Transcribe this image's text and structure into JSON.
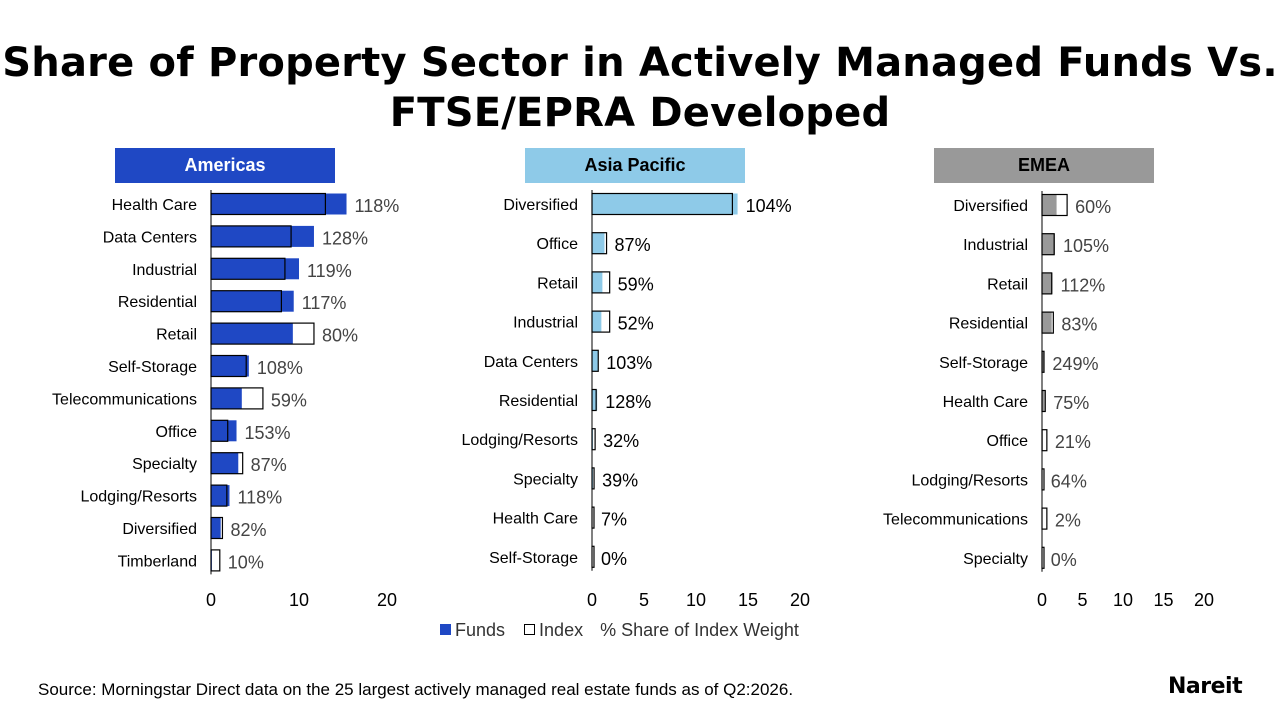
{
  "title": "Share of Property Sector in Actively Managed Funds Vs. FTSE/EPRA Developed",
  "legend": {
    "funds": "Funds",
    "index": "Index",
    "note": "% Share of Index Weight"
  },
  "source": "Source: Morningstar Direct data on the 25 largest actively managed real estate funds as of Q2:2026.",
  "logo": "Nareit",
  "chart_data": [
    {
      "type": "bar",
      "orientation": "horizontal",
      "title": "Americas",
      "header_color": "#1f48c4",
      "bar_color": "#1f48c4",
      "categories": [
        "Health Care",
        "Data Centers",
        "Industrial",
        "Residential",
        "Retail",
        "Self-Storage",
        "Telecommunications",
        "Office",
        "Specialty",
        "Lodging/Resorts",
        "Diversified",
        "Timberland"
      ],
      "series": [
        {
          "name": "Funds",
          "values": [
            15.4,
            11.7,
            10.0,
            9.4,
            9.3,
            4.3,
            3.5,
            2.9,
            3.1,
            2.1,
            1.1,
            0.1
          ]
        },
        {
          "name": "Index",
          "values": [
            13.0,
            9.1,
            8.4,
            8.0,
            11.7,
            4.0,
            5.9,
            1.9,
            3.6,
            1.8,
            1.3,
            1.0
          ]
        }
      ],
      "ratio_labels": [
        "118%",
        "128%",
        "119%",
        "117%",
        "80%",
        "108%",
        "59%",
        "153%",
        "87%",
        "118%",
        "82%",
        "10%"
      ],
      "xticks": [
        0,
        10,
        20
      ],
      "xlim": [
        0,
        20
      ]
    },
    {
      "type": "bar",
      "orientation": "horizontal",
      "title": "Asia Pacific",
      "header_color": "#8ecae8",
      "bar_color": "#8ecae8",
      "categories": [
        "Diversified",
        "Office",
        "Retail",
        "Industrial",
        "Data Centers",
        "Residential",
        "Lodging/Resorts",
        "Specialty",
        "Health Care",
        "Self-Storage"
      ],
      "series": [
        {
          "name": "Funds",
          "values": [
            14.0,
            1.2,
            1.0,
            0.9,
            0.6,
            0.5,
            0.1,
            0.1,
            0.0,
            0.0
          ]
        },
        {
          "name": "Index",
          "values": [
            13.5,
            1.4,
            1.7,
            1.7,
            0.6,
            0.4,
            0.3,
            0.2,
            0.1,
            0.1
          ]
        }
      ],
      "ratio_labels": [
        "104%",
        "87%",
        "59%",
        "52%",
        "103%",
        "128%",
        "32%",
        "39%",
        "7%",
        "0%"
      ],
      "xticks": [
        0,
        5,
        10,
        15,
        20
      ],
      "xlim": [
        0,
        20
      ]
    },
    {
      "type": "bar",
      "orientation": "horizontal",
      "title": "EMEA",
      "header_color": "#999999",
      "bar_color": "#999999",
      "categories": [
        "Diversified",
        "Industrial",
        "Retail",
        "Residential",
        "Self-Storage",
        "Health Care",
        "Office",
        "Lodging/Resorts",
        "Telecommunications",
        "Specialty"
      ],
      "series": [
        {
          "name": "Funds",
          "values": [
            1.8,
            1.6,
            1.3,
            1.2,
            0.3,
            0.3,
            0.1,
            0.0,
            0.0,
            0.0
          ]
        },
        {
          "name": "Index",
          "values": [
            3.1,
            1.5,
            1.2,
            1.4,
            0.1,
            0.4,
            0.6,
            0.1,
            0.6,
            0.1
          ]
        }
      ],
      "ratio_labels": [
        "60%",
        "105%",
        "112%",
        "83%",
        "249%",
        "75%",
        "21%",
        "64%",
        "2%",
        "0%"
      ],
      "xticks": [
        0,
        5,
        10,
        15,
        20
      ],
      "xlim": [
        0,
        20
      ]
    }
  ]
}
